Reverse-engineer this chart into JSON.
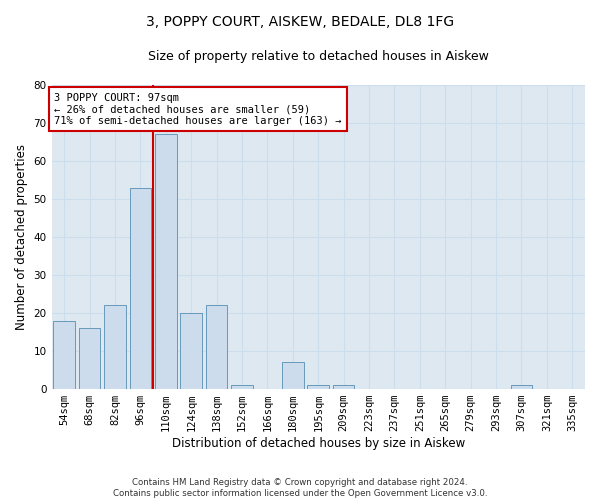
{
  "title": "3, POPPY COURT, AISKEW, BEDALE, DL8 1FG",
  "subtitle": "Size of property relative to detached houses in Aiskew",
  "xlabel": "Distribution of detached houses by size in Aiskew",
  "ylabel": "Number of detached properties",
  "categories": [
    "54sqm",
    "68sqm",
    "82sqm",
    "96sqm",
    "110sqm",
    "124sqm",
    "138sqm",
    "152sqm",
    "166sqm",
    "180sqm",
    "195sqm",
    "209sqm",
    "223sqm",
    "237sqm",
    "251sqm",
    "265sqm",
    "279sqm",
    "293sqm",
    "307sqm",
    "321sqm",
    "335sqm"
  ],
  "values": [
    18,
    16,
    22,
    53,
    67,
    20,
    22,
    1,
    0,
    7,
    1,
    1,
    0,
    0,
    0,
    0,
    0,
    0,
    1,
    0,
    0
  ],
  "bar_color": "#ccdcec",
  "bar_edgecolor": "#6699bb",
  "annotation_text": "3 POPPY COURT: 97sqm\n← 26% of detached houses are smaller (59)\n71% of semi-detached houses are larger (163) →",
  "annotation_box_color": "#ffffff",
  "annotation_box_edgecolor": "#cc0000",
  "vline_color": "#cc0000",
  "vline_x": 3.5,
  "ylim": [
    0,
    80
  ],
  "yticks": [
    0,
    10,
    20,
    30,
    40,
    50,
    60,
    70,
    80
  ],
  "grid_color": "#ccddee",
  "axes_background": "#dde8f0",
  "footer": "Contains HM Land Registry data © Crown copyright and database right 2024.\nContains public sector information licensed under the Open Government Licence v3.0.",
  "title_fontsize": 10,
  "subtitle_fontsize": 9,
  "xlabel_fontsize": 8.5,
  "ylabel_fontsize": 8.5,
  "tick_fontsize": 7.5,
  "ann_fontsize": 7.5
}
